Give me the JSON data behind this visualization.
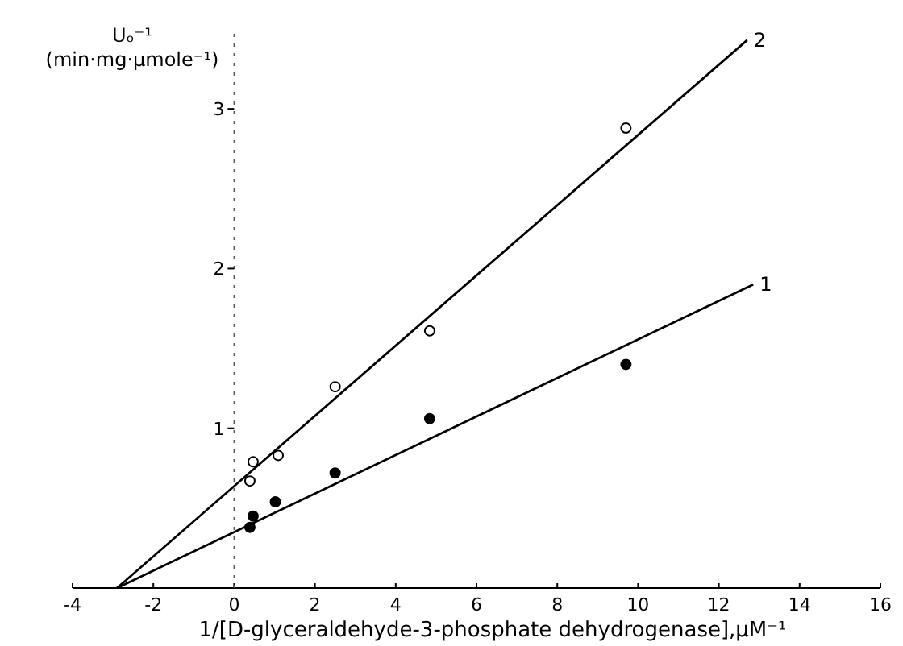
{
  "chart_data": {
    "type": "scatter",
    "xlabel": "1/[D-glyceraldehyde-3-phosphate dehydrogenase],µM⁻¹",
    "ylabel": "Uₒ⁻¹ (min·mg·µmole⁻¹)",
    "xlim": [
      -4,
      16
    ],
    "xticks": [
      -4,
      -2,
      0,
      2,
      4,
      6,
      8,
      10,
      12,
      14,
      16
    ],
    "ylim": [
      0,
      3.5
    ],
    "yticks": [
      1,
      2,
      3
    ],
    "series": [
      {
        "type": "line",
        "name": "2",
        "color": "#000000",
        "x": [
          -2.9,
          12.7
        ],
        "values": [
          0,
          3.43
        ],
        "marker": "none"
      },
      {
        "type": "line",
        "name": "1",
        "color": "#000000",
        "x": [
          -2.9,
          12.85
        ],
        "values": [
          0,
          1.9
        ],
        "marker": "none"
      },
      {
        "color": "#ffffff",
        "marker": "circle",
        "x": [
          0.47,
          0.39,
          1.09,
          2.5,
          4.84,
          9.7
        ],
        "values": [
          0.79,
          0.67,
          0.83,
          1.26,
          1.61,
          2.88
        ]
      },
      {
        "color": "#000000",
        "marker": "circle",
        "x": [
          0.39,
          0.47,
          1.02,
          2.5,
          4.84,
          9.7
        ],
        "values": [
          0.38,
          0.45,
          0.54,
          0.72,
          1.06,
          1.4
        ]
      }
    ]
  }
}
